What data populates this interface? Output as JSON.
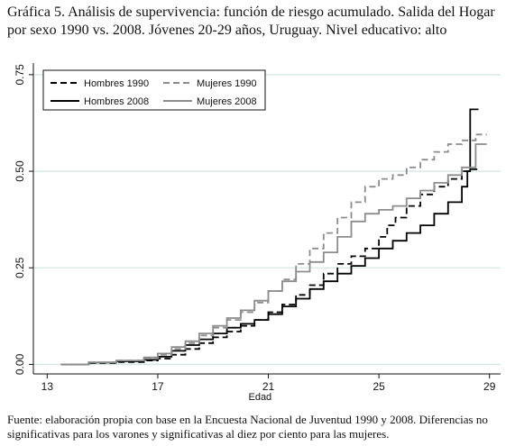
{
  "title": "Gráfica 5. Análisis de supervivencia: función de riesgo acumulado. Salida del Hogar por sexo 1990 vs. 2008. Jóvenes 20-29 años, Uruguay. Nivel educativo: alto",
  "footnote": "Fuente: elaboración propia con base en la Encuesta Nacional de Juventud 1990 y 2008. Diferencias no significativas para los varones y significativas al diez por ciento para las mujeres.",
  "chart_data": {
    "type": "line",
    "xlabel": "Edad",
    "ylabel": "",
    "xlim": [
      12.5,
      29.4
    ],
    "ylim": [
      -0.02,
      0.78
    ],
    "xticks": [
      13,
      17,
      21,
      25,
      29
    ],
    "xtick_labels": [
      "13",
      "17",
      "21",
      "25",
      "29"
    ],
    "yticks": [
      0.0,
      0.25,
      0.5,
      0.75
    ],
    "ytick_labels": [
      "0.00",
      "0.25",
      "0.50",
      "0.75"
    ],
    "grid": "horizontal",
    "legend_position": "top-left",
    "series": [
      {
        "name": "Hombres 1990",
        "color": "#000000",
        "dash": "dashed",
        "x": [
          13.5,
          14.5,
          15.5,
          16.5,
          17.0,
          17.5,
          18.0,
          18.5,
          19.0,
          19.5,
          20.0,
          20.5,
          21.0,
          21.5,
          22.0,
          22.5,
          23.0,
          23.5,
          24.0,
          24.5,
          25.0,
          25.3,
          25.6,
          26.0,
          26.5,
          27.0,
          27.5,
          28.0,
          28.3,
          28.6
        ],
        "values": [
          0.0,
          0.003,
          0.006,
          0.01,
          0.015,
          0.025,
          0.04,
          0.055,
          0.07,
          0.085,
          0.1,
          0.115,
          0.135,
          0.155,
          0.18,
          0.205,
          0.235,
          0.26,
          0.28,
          0.3,
          0.33,
          0.36,
          0.38,
          0.41,
          0.44,
          0.46,
          0.48,
          0.5,
          0.505,
          0.505
        ]
      },
      {
        "name": "Hombres 2008",
        "color": "#000000",
        "dash": "solid",
        "x": [
          13.5,
          14.5,
          15.5,
          16.5,
          17.0,
          17.5,
          18.0,
          18.5,
          19.0,
          19.5,
          20.0,
          20.5,
          21.0,
          21.5,
          22.0,
          22.5,
          23.0,
          23.5,
          24.0,
          24.5,
          25.0,
          25.5,
          26.0,
          26.5,
          27.0,
          27.5,
          28.0,
          28.2,
          28.3,
          28.6
        ],
        "values": [
          0.0,
          0.005,
          0.008,
          0.012,
          0.02,
          0.035,
          0.05,
          0.065,
          0.08,
          0.095,
          0.105,
          0.115,
          0.13,
          0.15,
          0.17,
          0.195,
          0.215,
          0.235,
          0.255,
          0.275,
          0.3,
          0.32,
          0.34,
          0.36,
          0.39,
          0.42,
          0.46,
          0.5,
          0.66,
          0.66
        ]
      },
      {
        "name": "Mujeres 1990",
        "color": "#8c8c8c",
        "dash": "dashed",
        "x": [
          13.5,
          14.5,
          15.5,
          16.5,
          17.0,
          17.5,
          18.0,
          18.5,
          19.0,
          19.5,
          20.0,
          20.5,
          21.0,
          21.5,
          22.0,
          22.5,
          23.0,
          23.5,
          24.0,
          24.5,
          25.0,
          25.5,
          26.0,
          26.5,
          27.0,
          27.5,
          28.0,
          28.5,
          28.9
        ],
        "values": [
          0.0,
          0.005,
          0.01,
          0.015,
          0.025,
          0.04,
          0.055,
          0.075,
          0.095,
          0.115,
          0.135,
          0.16,
          0.19,
          0.22,
          0.26,
          0.3,
          0.34,
          0.38,
          0.42,
          0.46,
          0.48,
          0.49,
          0.51,
          0.53,
          0.55,
          0.57,
          0.58,
          0.595,
          0.595
        ]
      },
      {
        "name": "Mujeres 2008",
        "color": "#8c8c8c",
        "dash": "solid",
        "x": [
          13.5,
          14.5,
          15.5,
          16.5,
          17.0,
          17.5,
          18.0,
          18.5,
          19.0,
          19.5,
          20.0,
          20.5,
          21.0,
          21.5,
          22.0,
          22.5,
          23.0,
          23.5,
          24.0,
          24.5,
          25.0,
          25.5,
          26.0,
          26.5,
          27.0,
          27.5,
          28.0,
          28.5,
          28.9
        ],
        "values": [
          0.0,
          0.005,
          0.01,
          0.018,
          0.028,
          0.045,
          0.06,
          0.08,
          0.1,
          0.12,
          0.14,
          0.165,
          0.19,
          0.215,
          0.24,
          0.265,
          0.29,
          0.33,
          0.37,
          0.39,
          0.4,
          0.41,
          0.43,
          0.45,
          0.47,
          0.49,
          0.51,
          0.57,
          0.57
        ]
      }
    ]
  }
}
